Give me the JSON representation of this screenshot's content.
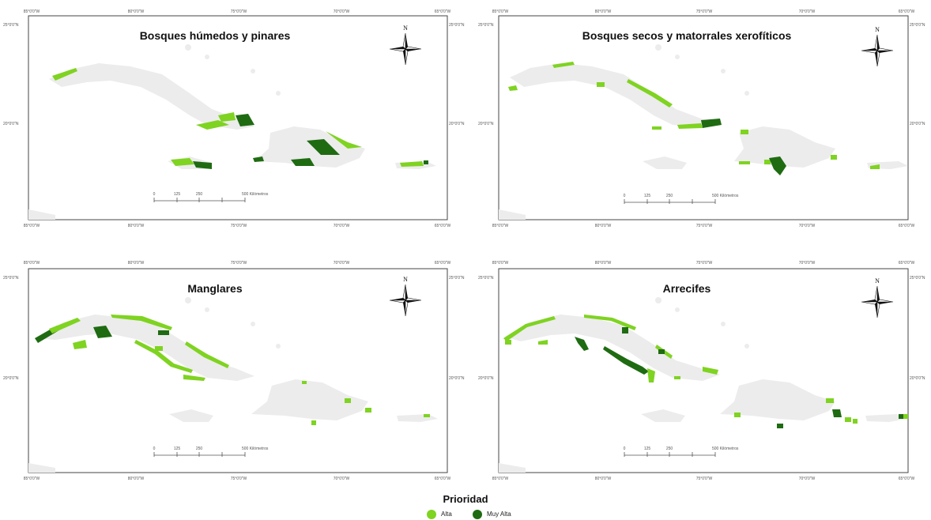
{
  "colors": {
    "alta": "#7fd321",
    "muy_alta": "#1f6b12",
    "land": "#ececec",
    "frame": "#444444",
    "sea": "#ffffff"
  },
  "panels": [
    {
      "title": "Bosques húmedos y pinares",
      "north": "N",
      "top_ticks": [
        "85°0'0\"W",
        "80°0'0\"W",
        "75°0'0\"W",
        "70°0'0\"W",
        "65°0'0\"W"
      ],
      "bottom_ticks": [
        "85°0'0\"W",
        "80°0'0\"W",
        "75°0'0\"W",
        "70°0'0\"W",
        "65°0'0\"W"
      ],
      "left_ticks": [
        "25°0'0\"N",
        "20°0'0\"N"
      ],
      "right_ticks": [
        "25°0'0\"N",
        "20°0'0\"N"
      ],
      "scale_labels": [
        "0",
        "125",
        "250",
        "500 Kilómetros"
      ]
    },
    {
      "title": "Bosques secos y matorrales xerofíticos",
      "north": "N",
      "top_ticks": [
        "85°0'0\"W",
        "80°0'0\"W",
        "75°0'0\"W",
        "70°0'0\"W",
        "65°0'0\"W"
      ],
      "bottom_ticks": [
        "85°0'0\"W",
        "80°0'0\"W",
        "75°0'0\"W",
        "70°0'0\"W",
        "65°0'0\"W"
      ],
      "left_ticks": [
        "25°0'0\"N",
        "20°0'0\"N"
      ],
      "right_ticks": [
        "25°0'0\"N",
        "20°0'0\"N"
      ],
      "scale_labels": [
        "0",
        "125",
        "250",
        "500 Kilómetros"
      ]
    },
    {
      "title": "Manglares",
      "north": "N",
      "top_ticks": [
        "85°0'0\"W",
        "80°0'0\"W",
        "75°0'0\"W",
        "70°0'0\"W",
        "65°0'0\"W"
      ],
      "bottom_ticks": [
        "85°0'0\"W",
        "80°0'0\"W",
        "75°0'0\"W",
        "70°0'0\"W",
        "65°0'0\"W"
      ],
      "left_ticks": [
        "25°0'0\"N",
        "20°0'0\"N"
      ],
      "right_ticks": [
        "25°0'0\"N",
        "20°0'0\"N"
      ],
      "scale_labels": [
        "0",
        "125",
        "250",
        "500 Kilómetros"
      ]
    },
    {
      "title": "Arrecifes",
      "north": "N",
      "top_ticks": [
        "85°0'0\"W",
        "80°0'0\"W",
        "75°0'0\"W",
        "70°0'0\"W",
        "65°0'0\"W"
      ],
      "bottom_ticks": [
        "85°0'0\"W",
        "80°0'0\"W",
        "75°0'0\"W",
        "70°0'0\"W",
        "65°0'0\"W"
      ],
      "left_ticks": [
        "25°0'0\"N",
        "20°0'0\"N"
      ],
      "right_ticks": [
        "25°0'0\"N",
        "20°0'0\"N"
      ],
      "scale_labels": [
        "0",
        "125",
        "250",
        "500 Kilómetros"
      ]
    }
  ],
  "legend": {
    "title": "Prioridad",
    "items": [
      {
        "label": "Alta",
        "color": "#7fd321"
      },
      {
        "label": "Muy Alta",
        "color": "#1f6b12"
      }
    ]
  }
}
